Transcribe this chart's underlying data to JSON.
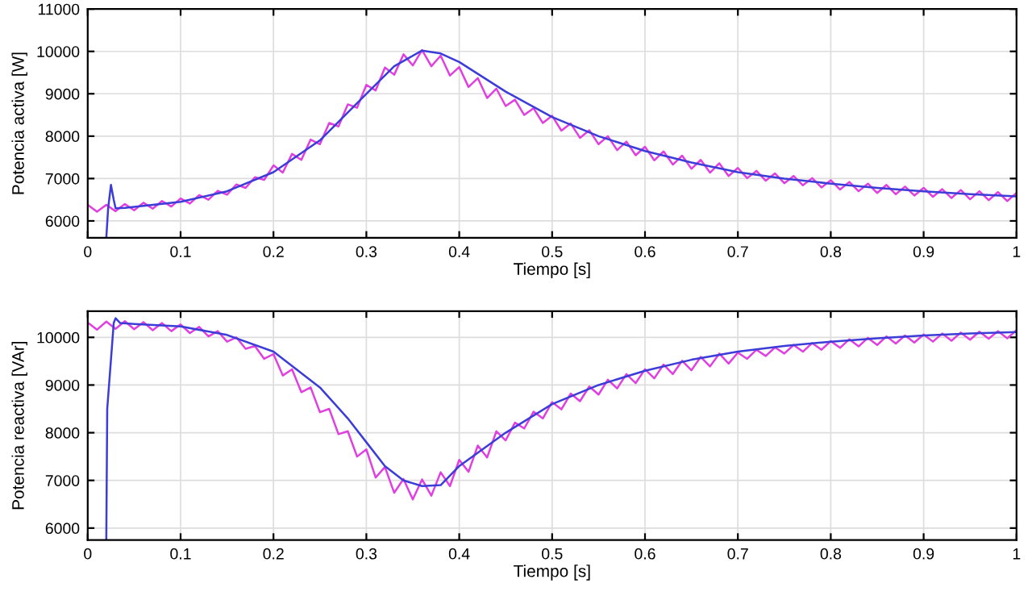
{
  "chart_data": [
    {
      "type": "line",
      "xlabel": "Tiempo [s]",
      "ylabel": "Potencia activa [W]",
      "xlim": [
        0,
        1
      ],
      "ylim": [
        5600,
        11000
      ],
      "xticks": [
        0,
        0.1,
        0.2,
        0.3,
        0.4,
        0.5,
        0.6,
        0.7,
        0.8,
        0.9,
        1
      ],
      "yticks": [
        6000,
        7000,
        8000,
        9000,
        10000,
        11000
      ],
      "grid": true,
      "series": [
        {
          "color": "#e040e0",
          "x": [
            0,
            0.01,
            0.02,
            0.03,
            0.04,
            0.05,
            0.06,
            0.07,
            0.08,
            0.09,
            0.1,
            0.11,
            0.12,
            0.13,
            0.14,
            0.15,
            0.16,
            0.17,
            0.18,
            0.19,
            0.2,
            0.21,
            0.22,
            0.23,
            0.24,
            0.25,
            0.26,
            0.27,
            0.28,
            0.29,
            0.3,
            0.31,
            0.32,
            0.33,
            0.34,
            0.35,
            0.36,
            0.37,
            0.38,
            0.39,
            0.4,
            0.41,
            0.42,
            0.43,
            0.44,
            0.45,
            0.46,
            0.47,
            0.48,
            0.49,
            0.5,
            0.51,
            0.52,
            0.53,
            0.54,
            0.55,
            0.56,
            0.57,
            0.58,
            0.59,
            0.6,
            0.61,
            0.62,
            0.63,
            0.64,
            0.65,
            0.66,
            0.67,
            0.68,
            0.69,
            0.7,
            0.71,
            0.72,
            0.73,
            0.74,
            0.75,
            0.76,
            0.77,
            0.78,
            0.79,
            0.8,
            0.81,
            0.82,
            0.83,
            0.84,
            0.85,
            0.86,
            0.87,
            0.88,
            0.89,
            0.9,
            0.91,
            0.92,
            0.93,
            0.94,
            0.95,
            0.96,
            0.97,
            0.98,
            0.99,
            1
          ],
          "values": [
            6380,
            6220,
            6380,
            6230,
            6400,
            6250,
            6430,
            6290,
            6470,
            6340,
            6530,
            6410,
            6610,
            6500,
            6710,
            6620,
            6860,
            6780,
            7030,
            6970,
            7310,
            7140,
            7580,
            7440,
            7920,
            7810,
            8310,
            8230,
            8750,
            8670,
            9210,
            9080,
            9620,
            9450,
            9930,
            9670,
            10030,
            9650,
            9900,
            9430,
            9630,
            9160,
            9370,
            8900,
            9120,
            8710,
            8860,
            8500,
            8660,
            8310,
            8480,
            8130,
            8300,
            7960,
            8140,
            7810,
            8000,
            7670,
            7870,
            7550,
            7750,
            7430,
            7640,
            7330,
            7540,
            7230,
            7440,
            7140,
            7360,
            7060,
            7250,
            7010,
            7180,
            6950,
            7120,
            6890,
            7060,
            6840,
            7010,
            6790,
            6960,
            6740,
            6920,
            6700,
            6880,
            6660,
            6850,
            6630,
            6810,
            6600,
            6780,
            6570,
            6750,
            6540,
            6730,
            6510,
            6700,
            6490,
            6680,
            6470,
            6660
          ]
        },
        {
          "color": "#3c3cd8",
          "x": [
            0.02,
            0.022,
            0.025,
            0.028,
            0.03,
            0.04,
            0.05,
            0.1,
            0.15,
            0.2,
            0.25,
            0.3,
            0.33,
            0.36,
            0.38,
            0.4,
            0.45,
            0.5,
            0.55,
            0.6,
            0.65,
            0.7,
            0.75,
            0.8,
            0.85,
            0.9,
            0.95,
            1
          ],
          "values": [
            5600,
            6300,
            6850,
            6500,
            6300,
            6310,
            6330,
            6450,
            6700,
            7150,
            7900,
            9000,
            9650,
            10020,
            9950,
            9750,
            9050,
            8450,
            8000,
            7650,
            7380,
            7150,
            7000,
            6880,
            6780,
            6700,
            6630,
            6580
          ]
        }
      ]
    },
    {
      "type": "line",
      "xlabel": "Tiempo [s]",
      "ylabel": "Potencia reactiva [VAr]",
      "xlim": [
        0,
        1
      ],
      "ylim": [
        5750,
        10550
      ],
      "xticks": [
        0,
        0.1,
        0.2,
        0.3,
        0.4,
        0.5,
        0.6,
        0.7,
        0.8,
        0.9,
        1
      ],
      "yticks": [
        6000,
        7000,
        8000,
        9000,
        10000
      ],
      "grid": true,
      "series": [
        {
          "color": "#e040e0",
          "x": [
            0,
            0.01,
            0.02,
            0.03,
            0.04,
            0.05,
            0.06,
            0.07,
            0.08,
            0.09,
            0.1,
            0.11,
            0.12,
            0.13,
            0.14,
            0.15,
            0.16,
            0.17,
            0.18,
            0.19,
            0.2,
            0.21,
            0.22,
            0.23,
            0.24,
            0.25,
            0.26,
            0.27,
            0.28,
            0.29,
            0.3,
            0.31,
            0.32,
            0.33,
            0.34,
            0.35,
            0.36,
            0.37,
            0.38,
            0.39,
            0.4,
            0.41,
            0.42,
            0.43,
            0.44,
            0.45,
            0.46,
            0.47,
            0.48,
            0.49,
            0.5,
            0.51,
            0.52,
            0.53,
            0.54,
            0.55,
            0.56,
            0.57,
            0.58,
            0.59,
            0.6,
            0.61,
            0.62,
            0.63,
            0.64,
            0.65,
            0.66,
            0.67,
            0.68,
            0.69,
            0.7,
            0.71,
            0.72,
            0.73,
            0.74,
            0.75,
            0.76,
            0.77,
            0.78,
            0.79,
            0.8,
            0.81,
            0.82,
            0.83,
            0.84,
            0.85,
            0.86,
            0.87,
            0.88,
            0.89,
            0.9,
            0.91,
            0.92,
            0.93,
            0.94,
            0.95,
            0.96,
            0.97,
            0.98,
            0.99,
            1
          ],
          "values": [
            10310,
            10160,
            10330,
            10180,
            10340,
            10170,
            10320,
            10150,
            10300,
            10130,
            10270,
            10090,
            10220,
            10020,
            10130,
            9910,
            10000,
            9760,
            9820,
            9550,
            9650,
            9200,
            9330,
            8850,
            8950,
            8430,
            8500,
            7970,
            8030,
            7500,
            7650,
            7060,
            7280,
            6740,
            7030,
            6600,
            7020,
            6680,
            7170,
            6880,
            7430,
            7180,
            7730,
            7480,
            8030,
            7840,
            8210,
            8090,
            8440,
            8300,
            8640,
            8490,
            8820,
            8660,
            8970,
            8800,
            9110,
            8930,
            9230,
            9040,
            9330,
            9140,
            9430,
            9230,
            9510,
            9310,
            9590,
            9390,
            9660,
            9450,
            9680,
            9550,
            9740,
            9610,
            9790,
            9660,
            9840,
            9700,
            9880,
            9740,
            9920,
            9780,
            9960,
            9810,
            9990,
            9840,
            10020,
            9870,
            10040,
            9890,
            10060,
            9910,
            10080,
            9930,
            10100,
            9950,
            10120,
            9970,
            10130,
            9980,
            10150
          ]
        },
        {
          "color": "#3c3cd8",
          "x": [
            0.02,
            0.021,
            0.028,
            0.03,
            0.035,
            0.05,
            0.1,
            0.15,
            0.2,
            0.25,
            0.28,
            0.3,
            0.32,
            0.34,
            0.36,
            0.38,
            0.4,
            0.45,
            0.5,
            0.55,
            0.6,
            0.65,
            0.7,
            0.75,
            0.8,
            0.85,
            0.9,
            0.95,
            1
          ],
          "values": [
            5750,
            8500,
            10300,
            10400,
            10300,
            10280,
            10230,
            10050,
            9700,
            8950,
            8300,
            7800,
            7300,
            7000,
            6880,
            6900,
            7300,
            8000,
            8600,
            9000,
            9300,
            9530,
            9700,
            9820,
            9910,
            9980,
            10040,
            10080,
            10110
          ]
        }
      ]
    }
  ]
}
